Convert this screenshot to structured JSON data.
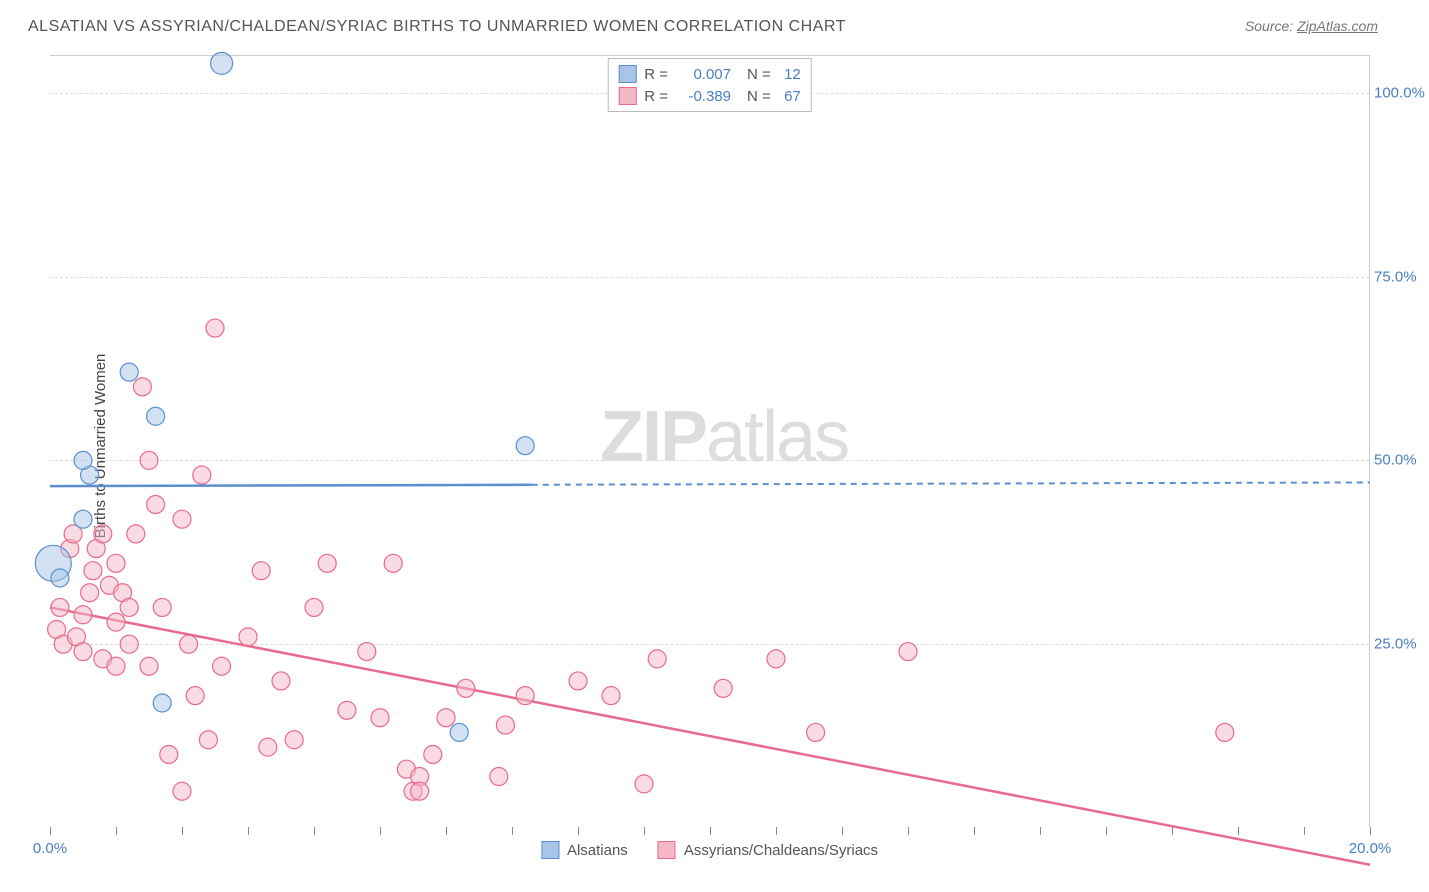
{
  "title": "ALSATIAN VS ASSYRIAN/CHALDEAN/SYRIAC BIRTHS TO UNMARRIED WOMEN CORRELATION CHART",
  "source_label": "Source: ",
  "source_link": "ZipAtlas.com",
  "yaxis_label": "Births to Unmarried Women",
  "watermark_zip": "ZIP",
  "watermark_atlas": "atlas",
  "chart": {
    "type": "scatter",
    "xlim": [
      0,
      20
    ],
    "ylim": [
      0,
      105
    ],
    "background_color": "#ffffff",
    "grid_color": "#dddddd",
    "ytick_values": [
      25,
      50,
      75,
      100
    ],
    "ytick_labels": [
      "25.0%",
      "50.0%",
      "75.0%",
      "100.0%"
    ],
    "ytick_color": "#4a7fc5",
    "xtick_values": [
      0,
      1,
      2,
      3,
      4,
      5,
      6,
      7,
      8,
      9,
      10,
      11,
      12,
      13,
      14,
      15,
      16,
      17,
      18,
      19,
      20
    ],
    "xtick_labels": {
      "0": "0.0%",
      "20": "20.0%"
    },
    "xtick_label_color": "#4a7fc5",
    "series": [
      {
        "name": "Alsatians",
        "color_fill": "#a8c5e8",
        "color_stroke": "#5b8fd0",
        "fill_opacity": 0.5,
        "marker_radius": 9,
        "R": "0.007",
        "N": "12",
        "regression": {
          "x1": 0,
          "y1": 46.5,
          "x2": 20,
          "y2": 47.0,
          "solid_until_x": 7.3
        },
        "points": [
          [
            0.05,
            36,
            18
          ],
          [
            0.15,
            34,
            9
          ],
          [
            0.5,
            42,
            9
          ],
          [
            0.6,
            48,
            9
          ],
          [
            0.5,
            50,
            9
          ],
          [
            1.2,
            62,
            9
          ],
          [
            1.6,
            56,
            9
          ],
          [
            2.6,
            104,
            11
          ],
          [
            7.2,
            52,
            9
          ],
          [
            1.7,
            17,
            9
          ],
          [
            6.2,
            13,
            9
          ]
        ]
      },
      {
        "name": "Assyrians/Chaldeans/Syriacs",
        "color_fill": "#f5b8c8",
        "color_stroke": "#e86a8f",
        "fill_opacity": 0.5,
        "marker_radius": 9,
        "R": "-0.389",
        "N": "67",
        "regression": {
          "x1": 0,
          "y1": 30,
          "x2": 20,
          "y2": -5,
          "solid_until_x": 20
        },
        "points": [
          [
            0.1,
            27,
            9
          ],
          [
            0.2,
            25,
            9
          ],
          [
            0.15,
            30,
            9
          ],
          [
            0.3,
            38,
            9
          ],
          [
            0.35,
            40,
            9
          ],
          [
            0.4,
            26,
            9
          ],
          [
            0.5,
            24,
            9
          ],
          [
            0.5,
            29,
            9
          ],
          [
            0.6,
            32,
            9
          ],
          [
            0.65,
            35,
            9
          ],
          [
            0.7,
            38,
            9
          ],
          [
            0.8,
            40,
            9
          ],
          [
            0.8,
            23,
            9
          ],
          [
            0.9,
            33,
            9
          ],
          [
            1.0,
            36,
            9
          ],
          [
            1.0,
            28,
            9
          ],
          [
            1.0,
            22,
            9
          ],
          [
            1.1,
            32,
            9
          ],
          [
            1.2,
            30,
            9
          ],
          [
            1.2,
            25,
            9
          ],
          [
            1.3,
            40,
            9
          ],
          [
            1.4,
            60,
            9
          ],
          [
            1.5,
            50,
            9
          ],
          [
            1.5,
            22,
            9
          ],
          [
            1.6,
            44,
            9
          ],
          [
            1.7,
            30,
            9
          ],
          [
            1.8,
            10,
            9
          ],
          [
            2.0,
            5,
            9
          ],
          [
            2.0,
            42,
            9
          ],
          [
            2.1,
            25,
            9
          ],
          [
            2.2,
            18,
            9
          ],
          [
            2.3,
            48,
            9
          ],
          [
            2.4,
            12,
            9
          ],
          [
            2.5,
            68,
            9
          ],
          [
            2.6,
            22,
            9
          ],
          [
            3.0,
            26,
            9
          ],
          [
            3.2,
            35,
            9
          ],
          [
            3.3,
            11,
            9
          ],
          [
            3.5,
            20,
            9
          ],
          [
            3.7,
            12,
            9
          ],
          [
            4.0,
            30,
            9
          ],
          [
            4.2,
            36,
            9
          ],
          [
            4.5,
            16,
            9
          ],
          [
            4.8,
            24,
            9
          ],
          [
            5.0,
            15,
            9
          ],
          [
            5.2,
            36,
            9
          ],
          [
            5.4,
            8,
            9
          ],
          [
            5.5,
            5,
            9
          ],
          [
            5.6,
            7,
            9
          ],
          [
            5.8,
            10,
            9
          ],
          [
            5.6,
            5,
            9
          ],
          [
            6.0,
            15,
            9
          ],
          [
            6.3,
            19,
            9
          ],
          [
            6.8,
            7,
            9
          ],
          [
            6.9,
            14,
            9
          ],
          [
            7.2,
            18,
            9
          ],
          [
            8.0,
            20,
            9
          ],
          [
            8.5,
            18,
            9
          ],
          [
            9.0,
            6,
            9
          ],
          [
            9.2,
            23,
            9
          ],
          [
            10.2,
            19,
            9
          ],
          [
            11.0,
            23,
            9
          ],
          [
            11.6,
            13,
            9
          ],
          [
            13.0,
            24,
            9
          ],
          [
            17.8,
            13,
            9
          ]
        ]
      }
    ]
  },
  "legend_top": {
    "r_label": "R  =",
    "n_label": "N  =",
    "value_color": "#4a7fc5",
    "text_color": "#555555"
  },
  "legend_bottom_text_color": "#555555"
}
